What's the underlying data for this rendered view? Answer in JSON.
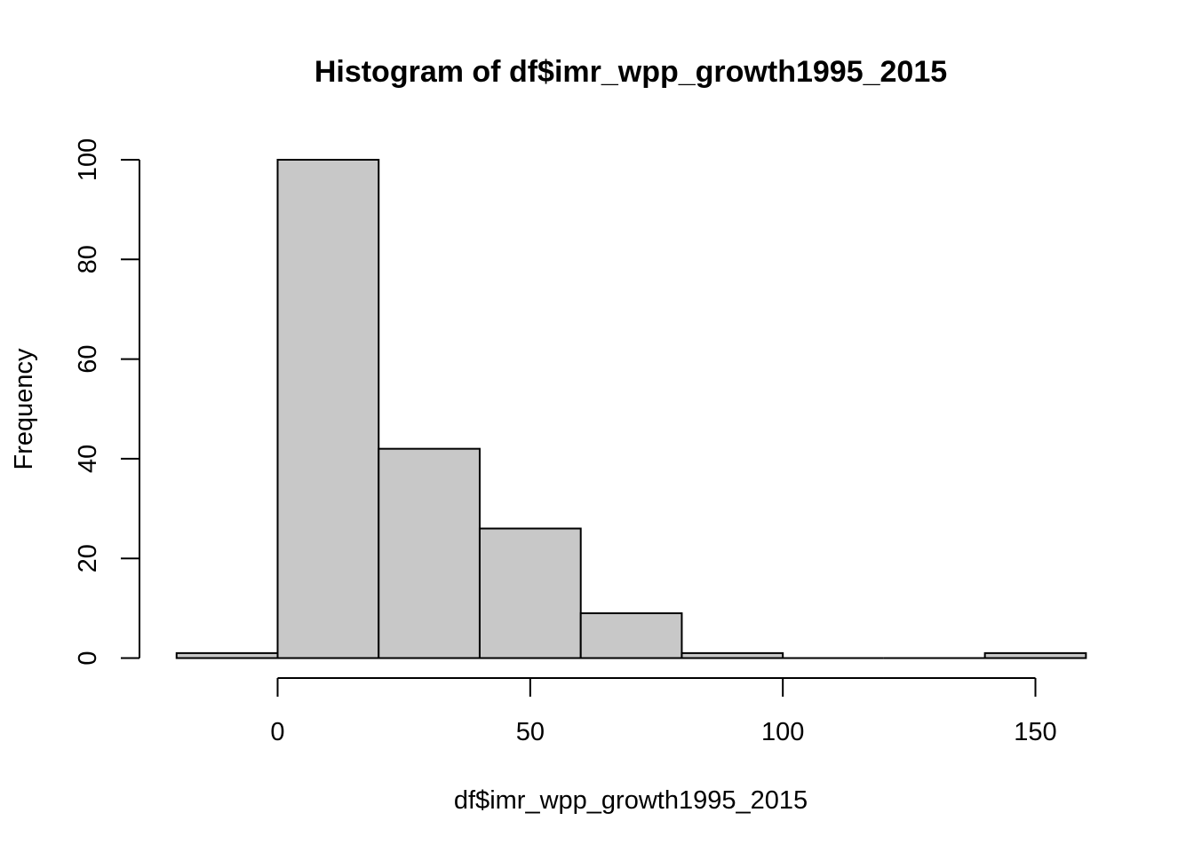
{
  "chart_data": {
    "type": "bar",
    "title": "Histogram of df$imr_wpp_growth1995_2015",
    "xlabel": "df$imr_wpp_growth1995_2015",
    "ylabel": "Frequency",
    "xlim": [
      -20,
      160
    ],
    "ylim": [
      0,
      100
    ],
    "bins": [
      {
        "start": -20,
        "end": 0,
        "count": 1
      },
      {
        "start": 0,
        "end": 20,
        "count": 100
      },
      {
        "start": 20,
        "end": 40,
        "count": 42
      },
      {
        "start": 40,
        "end": 60,
        "count": 26
      },
      {
        "start": 60,
        "end": 80,
        "count": 9
      },
      {
        "start": 80,
        "end": 100,
        "count": 1
      },
      {
        "start": 100,
        "end": 120,
        "count": 0
      },
      {
        "start": 120,
        "end": 140,
        "count": 0
      },
      {
        "start": 140,
        "end": 160,
        "count": 1
      }
    ],
    "x_ticks": [
      0,
      50,
      100,
      150
    ],
    "y_ticks": [
      0,
      20,
      40,
      60,
      80,
      100
    ],
    "grid": false,
    "legend": "none",
    "colors": {
      "bar_fill": "#c8c8c8",
      "bar_stroke": "#000000"
    }
  }
}
